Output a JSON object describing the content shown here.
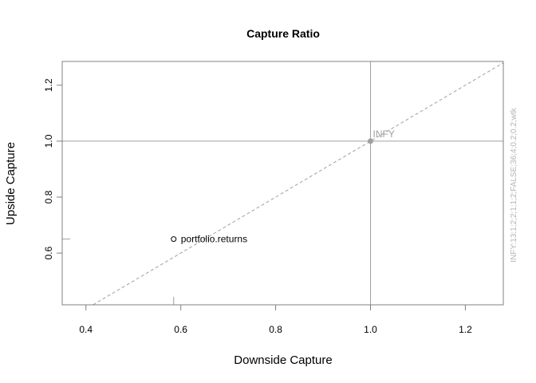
{
  "chart_data": {
    "type": "scatter",
    "title": "Capture Ratio",
    "xlabel": "Downside Capture",
    "ylabel": "Upside Capture",
    "xlim": [
      0.35,
      1.28
    ],
    "ylim": [
      0.415,
      1.285
    ],
    "x_ticks": [
      0.4,
      0.6,
      0.8,
      1.0,
      1.2
    ],
    "y_ticks": [
      0.6,
      0.8,
      1.0,
      1.2
    ],
    "x_tick_labels": [
      "0.4",
      "0.6",
      "0.8",
      "1.0",
      "1.2"
    ],
    "y_tick_labels": [
      "0.6",
      "0.8",
      "1.0",
      "1.2"
    ],
    "reference_lines": {
      "vertical_x": 1.0,
      "horizontal_y": 1.0,
      "diagonal": "y = x"
    },
    "points": [
      {
        "name": "portfolio.returns",
        "x": 0.585,
        "y": 0.65,
        "marker": "open-circle",
        "color": "#000000"
      },
      {
        "name": "INFY",
        "x": 1.0,
        "y": 1.0,
        "marker": "filled-circle",
        "color": "#a0a0a0"
      }
    ],
    "side_note": "INFY:13:1;2;2;1;1;2;FALSE;36;4;0.2;0.2;wtk",
    "colors": {
      "axis": "#808080",
      "reference": "#a0a0a0",
      "text": "#000000"
    },
    "grid": false
  }
}
